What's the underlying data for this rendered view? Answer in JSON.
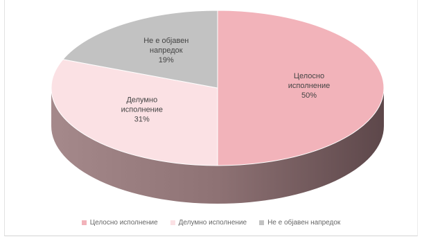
{
  "chart_data": {
    "type": "pie",
    "style": "3d",
    "categories": [
      "Целосно исполнение",
      "Делумно исполнение",
      "Не е објавен напредок"
    ],
    "values": [
      50,
      31,
      19
    ],
    "value_labels": [
      "50%",
      "31%",
      "19%"
    ],
    "label_lines": [
      [
        "Целосно",
        "исполнение",
        "50%"
      ],
      [
        "Делумно",
        "исполнение",
        "31%"
      ],
      [
        "Не е објавен",
        "напредок",
        "19%"
      ]
    ],
    "colors": [
      "#f2b3ba",
      "#fbe1e4",
      "#c2c2c2"
    ],
    "side_colors": [
      "#6a5355",
      "#9b8285",
      "#9b8285"
    ],
    "legend": {
      "placement": "bottom"
    }
  }
}
